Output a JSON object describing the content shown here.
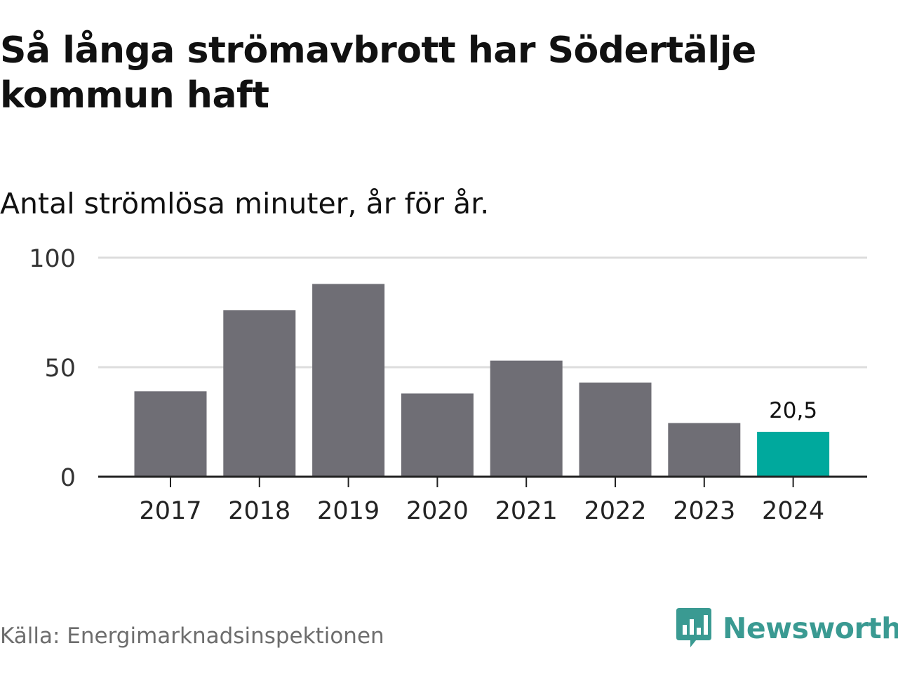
{
  "title": "Så långa strömavbrott har Södertälje kommun haft",
  "subtitle": "Antal strömlösa minuter, år för år.",
  "source": "Källa: Energimarknadsinspektionen",
  "brand": {
    "name": "Newsworthy",
    "logo_icon": "newsworthy-logo-icon"
  },
  "colors": {
    "bar": "#6f6e75",
    "highlight": "#00a99d",
    "grid": "#dddddd",
    "axis": "#222222",
    "brand": "#3a9a92"
  },
  "chart_data": {
    "type": "bar",
    "title": "Så långa strömavbrott har Södertälje kommun haft",
    "subtitle": "Antal strömlösa minuter, år för år.",
    "xlabel": "",
    "ylabel": "",
    "categories": [
      "2017",
      "2018",
      "2019",
      "2020",
      "2021",
      "2022",
      "2023",
      "2024"
    ],
    "values": [
      39,
      76,
      88,
      38,
      53,
      43,
      24.5,
      20.5
    ],
    "ylim": [
      0,
      100
    ],
    "yticks": [
      0,
      50,
      100
    ],
    "ytick_labels": [
      "0",
      "50",
      "100"
    ],
    "grid": true,
    "highlight_index": 7,
    "annotations": [
      {
        "category": "2024",
        "value": 20.5,
        "label": "20,5"
      }
    ]
  }
}
